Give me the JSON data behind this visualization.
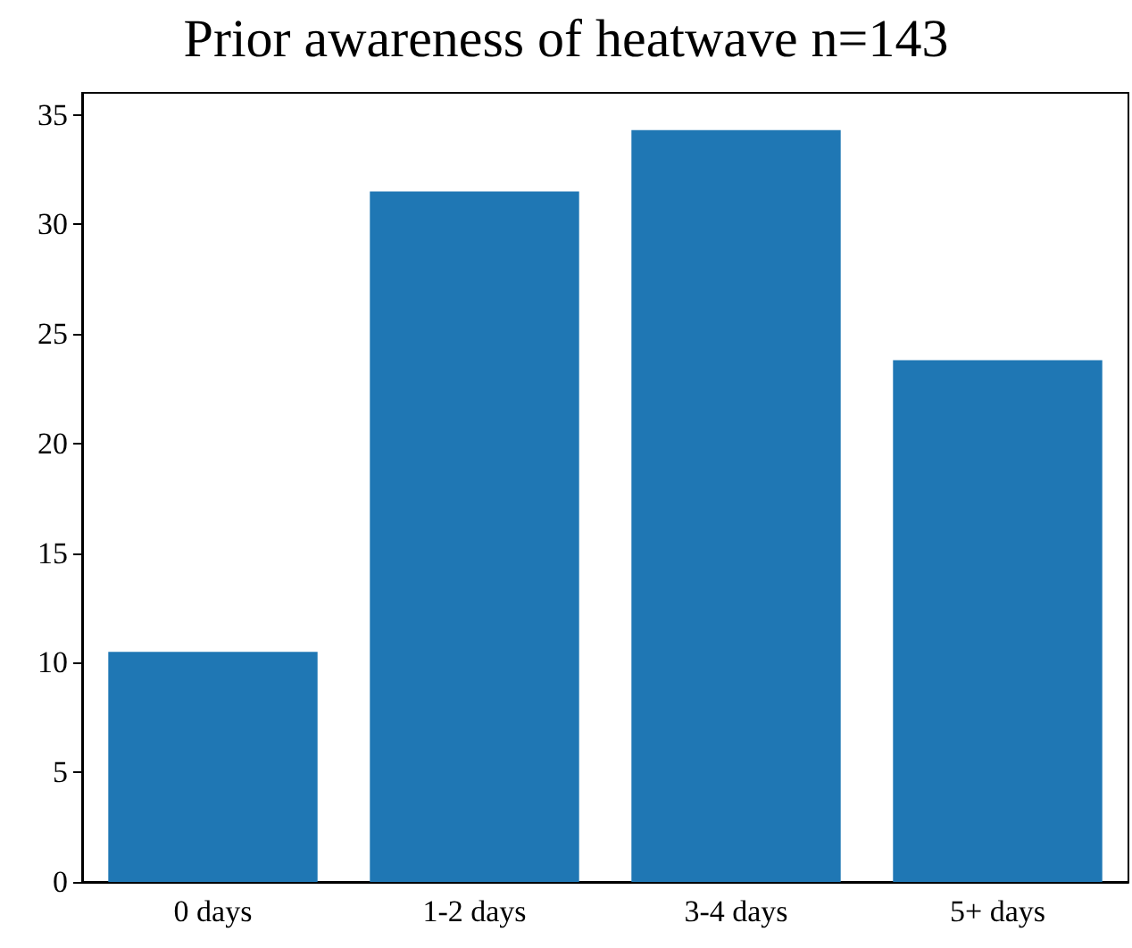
{
  "chart_data": {
    "type": "bar",
    "title": "Prior awareness of heatwave n=143",
    "categories": [
      "0 days",
      "1-2 days",
      "3-4 days",
      "5+ days"
    ],
    "values": [
      10.5,
      31.5,
      34.3,
      23.8
    ],
    "color": "#1f77b4",
    "ylim": [
      0,
      36
    ],
    "yticks": [
      0,
      5,
      10,
      15,
      20,
      25,
      30,
      35
    ],
    "grid": false
  }
}
